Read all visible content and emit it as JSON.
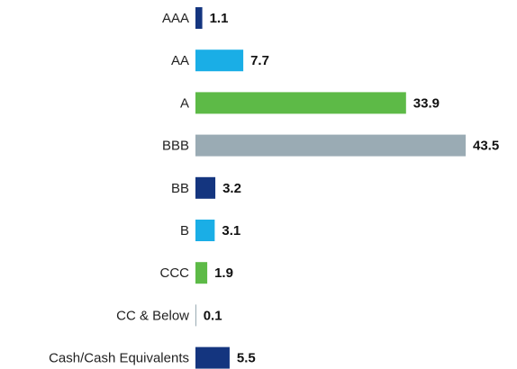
{
  "chart_data": {
    "type": "bar",
    "orientation": "horizontal",
    "categories": [
      "AAA",
      "AA",
      "A",
      "BBB",
      "BB",
      "B",
      "CCC",
      "CC & Below",
      "Cash/Cash Equivalents"
    ],
    "values": [
      1.1,
      7.7,
      33.9,
      43.5,
      3.2,
      3.1,
      1.9,
      0.1,
      5.5
    ],
    "colors": [
      "#14357f",
      "#1aaee6",
      "#5dba47",
      "#9aabb4",
      "#14357f",
      "#1aaee6",
      "#5dba47",
      "#9aabb4",
      "#14357f"
    ]
  }
}
